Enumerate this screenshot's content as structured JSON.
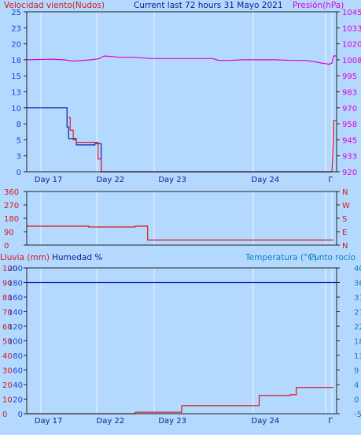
{
  "header": {
    "left": "Velocidad viento(Nudos)",
    "center": "Current last 72 hours 31 Mayo 2021",
    "right": "Presión(hPa)"
  },
  "panel3_header": {
    "rain": "Lluvia (mm)",
    "humidity": "Humedad %",
    "temp": "Temperatura (°C)",
    "dew": "Punto rocío"
  },
  "colors": {
    "background": "#b4d9ff",
    "plot": "#b4d9ff",
    "grid": "#dcebfa",
    "wind": "#0a1fa8",
    "gust": "#e8142a",
    "pressure": "#e000d0",
    "direction": "#d81818",
    "humidity": "#1020c0",
    "rain": "#d81818",
    "label_red": "#d81818",
    "label_blue": "#1848c8",
    "label_magenta": "#e000d0",
    "label_navy": "#10208a",
    "temp_label": "#1080c0"
  },
  "chart_data": [
    {
      "type": "line",
      "title": "Current last 72 hours 31 Mayo 2021",
      "x_tick_labels": [
        "Day 17",
        "Day 22",
        "Day 23",
        "Day 24",
        "Γ"
      ],
      "x_ticks": [
        0.07,
        0.27,
        0.47,
        0.77,
        0.98
      ],
      "y_left": {
        "label": "Velocidad viento(Nudos)",
        "ticks": [
          "25",
          "23",
          "20",
          "18",
          "15",
          "13",
          "10",
          "8",
          "5",
          "3",
          "0"
        ],
        "range": [
          0,
          25
        ]
      },
      "y_right": {
        "label": "Presión(hPa)",
        "ticks": [
          "1045",
          "1033",
          "1020",
          "1008",
          "995",
          "983",
          "970",
          "958",
          "945",
          "933",
          "920"
        ],
        "range": [
          920,
          1045
        ]
      },
      "series": [
        {
          "name": "wind",
          "color_key": "wind",
          "x": [
            0,
            0.13,
            0.13,
            0.135,
            0.135,
            0.16,
            0.16,
            0.22,
            0.22,
            0.24,
            0.24,
            0.985
          ],
          "y": [
            10,
            10,
            7,
            7,
            5.2,
            5.2,
            4.2,
            4.2,
            4.4,
            4.4,
            0,
            0
          ]
        },
        {
          "name": "gust",
          "color_key": "gust",
          "x": [
            0.135,
            0.14,
            0.14,
            0.15,
            0.15,
            0.16,
            0.16,
            0.23,
            0.23,
            0.24,
            0.24,
            0.985,
            0.99,
            0.99,
            1.0
          ],
          "y": [
            8.5,
            8.5,
            6.5,
            6.5,
            5,
            5,
            4.6,
            4.6,
            2,
            2,
            0,
            0,
            6,
            8,
            8
          ]
        },
        {
          "name": "pressure",
          "color_key": "pressure",
          "x": [
            0,
            0.08,
            0.12,
            0.15,
            0.18,
            0.21,
            0.235,
            0.25,
            0.3,
            0.35,
            0.4,
            0.5,
            0.6,
            0.62,
            0.65,
            0.7,
            0.75,
            0.8,
            0.86,
            0.9,
            0.93,
            0.95,
            0.965,
            0.975,
            0.985,
            0.99,
            1.0
          ],
          "y": [
            1007.5,
            1008,
            1007.5,
            1006.5,
            1007,
            1007.5,
            1008.5,
            1010.5,
            1009.5,
            1009.5,
            1008.5,
            1008.5,
            1008.5,
            1007,
            1007,
            1007.5,
            1007.5,
            1007.5,
            1007,
            1007,
            1006,
            1005,
            1004.5,
            1004,
            1005,
            1010.5,
            1010.5
          ]
        }
      ]
    },
    {
      "type": "line",
      "y_left": {
        "ticks": [
          "360",
          "270",
          "180",
          "90",
          "0"
        ],
        "range": [
          0,
          360
        ]
      },
      "y_right": {
        "ticks": [
          "N",
          "W",
          "S",
          "E",
          "N"
        ]
      },
      "series": [
        {
          "name": "direction",
          "color_key": "direction",
          "x": [
            0,
            0.2,
            0.2,
            0.35,
            0.35,
            0.39,
            0.39,
            0.99
          ],
          "y": [
            127,
            127,
            122,
            122,
            127,
            127,
            34,
            34
          ]
        }
      ]
    },
    {
      "type": "line",
      "y_left_outer": {
        "label": "Lluvia (mm)",
        "ticks": [
          "100",
          "90",
          "80",
          "70",
          "60",
          "50",
          "40",
          "30",
          "20",
          "10",
          "0"
        ]
      },
      "y_left_inner": {
        "label": "Humedad %",
        "ticks": [
          "200",
          "180",
          "160",
          "140",
          "120",
          "100",
          "80",
          "60",
          "40",
          "20",
          "0"
        ]
      },
      "y_right": {
        "label": "Temperatura (°C)Punto rocío",
        "ticks": [
          "40",
          "36",
          "31",
          "27",
          "22",
          "18",
          "13",
          "9",
          "4",
          "0",
          "-5"
        ]
      },
      "x_tick_labels": [
        "Day 17",
        "Day 22",
        "Day 23",
        "Day 24",
        "Γ"
      ],
      "x_ticks": [
        0.07,
        0.27,
        0.47,
        0.77,
        0.98
      ],
      "series": [
        {
          "name": "humidity",
          "color_key": "humidity",
          "x": [
            0,
            1.0
          ],
          "y": [
            180,
            180
          ]
        },
        {
          "name": "rain",
          "color_key": "rain",
          "x": [
            0,
            0.35,
            0.35,
            0.5,
            0.5,
            0.75,
            0.75,
            0.85,
            0.85,
            0.87,
            0.87,
            0.99
          ],
          "y": [
            0,
            0,
            1,
            1,
            5.5,
            5.5,
            12.5,
            12.5,
            13,
            13,
            18,
            18
          ]
        }
      ]
    }
  ]
}
